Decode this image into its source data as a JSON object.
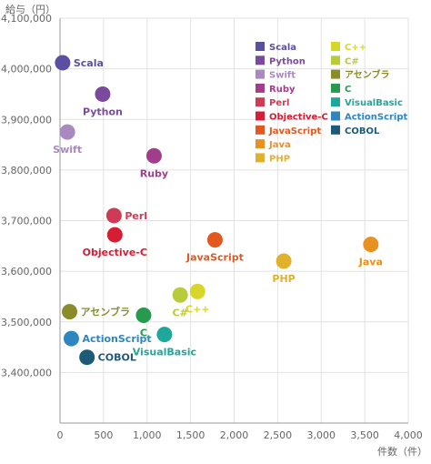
{
  "chart_data": {
    "type": "scatter",
    "ylabel": "給与（円）",
    "xlabel": "件数（件）",
    "xlim": [
      0,
      4000
    ],
    "ylim": [
      3300000,
      4100000
    ],
    "x_ticks": [
      0,
      500,
      1000,
      1500,
      2000,
      2500,
      3000,
      3500,
      4000
    ],
    "y_ticks": [
      3400000,
      3500000,
      3600000,
      3700000,
      3800000,
      3900000,
      4000000,
      4100000
    ],
    "x_tick_labels": [
      "0",
      "500",
      "1,000",
      "1,500",
      "2,000",
      "2,500",
      "3,000",
      "3,500",
      "4,000"
    ],
    "y_tick_labels": [
      "3,400,000",
      "3,500,000",
      "3,600,000",
      "3,700,000",
      "3,800,000",
      "3,900,000",
      "4,000,000",
      "4,100,000"
    ],
    "grid": true,
    "legend_position": "top-right",
    "points": [
      {
        "name": "Scala",
        "x": 30,
        "y": 4012000,
        "color": "#5a4fa0",
        "label_pos": "right"
      },
      {
        "name": "Python",
        "x": 490,
        "y": 3950000,
        "color": "#7a4a9c",
        "label_pos": "below"
      },
      {
        "name": "Swift",
        "x": 85,
        "y": 3875000,
        "color": "#a98ac0",
        "label_pos": "below"
      },
      {
        "name": "Ruby",
        "x": 1080,
        "y": 3828000,
        "color": "#a23d8c",
        "label_pos": "below"
      },
      {
        "name": "Perl",
        "x": 620,
        "y": 3710000,
        "color": "#cf3a55",
        "label_pos": "right"
      },
      {
        "name": "Objective-C",
        "x": 630,
        "y": 3672000,
        "color": "#d61d33",
        "label_pos": "below"
      },
      {
        "name": "JavaScript",
        "x": 1780,
        "y": 3662000,
        "color": "#e2581f",
        "label_pos": "below"
      },
      {
        "name": "Java",
        "x": 3570,
        "y": 3653000,
        "color": "#e8911f",
        "label_pos": "below"
      },
      {
        "name": "PHP",
        "x": 2570,
        "y": 3620000,
        "color": "#e1b12c",
        "label_pos": "below"
      },
      {
        "name": "C++",
        "x": 1580,
        "y": 3560000,
        "color": "#d8d52b",
        "label_pos": "below"
      },
      {
        "name": "C#",
        "x": 1380,
        "y": 3553000,
        "color": "#b9ca3a",
        "label_pos": "below"
      },
      {
        "name": "アセンブラ",
        "x": 110,
        "y": 3520000,
        "color": "#8a8c2a",
        "label_pos": "right"
      },
      {
        "name": "C",
        "x": 960,
        "y": 3513000,
        "color": "#279a4f",
        "label_pos": "below"
      },
      {
        "name": "VisualBasic",
        "x": 1200,
        "y": 3475000,
        "color": "#1ea79a",
        "label_pos": "below"
      },
      {
        "name": "ActionScript",
        "x": 130,
        "y": 3467000,
        "color": "#2e86c0",
        "label_pos": "right"
      },
      {
        "name": "COBOL",
        "x": 310,
        "y": 3430000,
        "color": "#1d5a78",
        "label_pos": "right"
      }
    ],
    "legend": [
      {
        "name": "Scala",
        "color": "#5a4fa0"
      },
      {
        "name": "Python",
        "color": "#7a4a9c"
      },
      {
        "name": "Swift",
        "color": "#a98ac0"
      },
      {
        "name": "Ruby",
        "color": "#a23d8c"
      },
      {
        "name": "Perl",
        "color": "#cf3a55"
      },
      {
        "name": "Objective-C",
        "color": "#d61d33"
      },
      {
        "name": "JavaScript",
        "color": "#e2581f"
      },
      {
        "name": "Java",
        "color": "#e8911f"
      },
      {
        "name": "PHP",
        "color": "#e1b12c"
      },
      {
        "name": "C++",
        "color": "#d8d52b"
      },
      {
        "name": "C#",
        "color": "#b9ca3a"
      },
      {
        "name": "アセンブラ",
        "color": "#8a8c2a"
      },
      {
        "name": "C",
        "color": "#279a4f"
      },
      {
        "name": "VisualBasic",
        "color": "#1ea79a"
      },
      {
        "name": "ActionScript",
        "color": "#2e86c0"
      },
      {
        "name": "COBOL",
        "color": "#1d5a78"
      }
    ]
  }
}
